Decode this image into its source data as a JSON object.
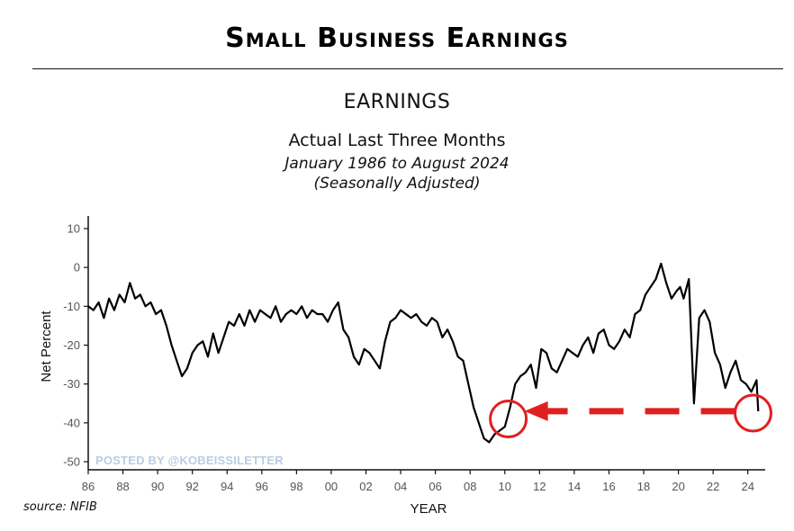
{
  "header": {
    "title": "Small Business Earnings"
  },
  "chart_data": {
    "type": "line",
    "title": "EARNINGS",
    "subtitle": "Actual Last Three Months",
    "date_range": "January 1986 to August 2024",
    "note": "(Seasonally Adjusted)",
    "xlabel": "YEAR",
    "ylabel": "Net Percent",
    "xlim": [
      1986,
      2025
    ],
    "ylim": [
      -50,
      10
    ],
    "xticks": [
      "86",
      "88",
      "90",
      "92",
      "94",
      "96",
      "98",
      "00",
      "02",
      "04",
      "06",
      "08",
      "10",
      "12",
      "14",
      "16",
      "18",
      "20",
      "22",
      "24"
    ],
    "yticks": [
      "10",
      "0",
      "-10",
      "-20",
      "-30",
      "-40",
      "-50"
    ],
    "grid": false,
    "series": [
      {
        "color": "#000000",
        "x": [
          1986.0,
          1986.3,
          1986.6,
          1986.9,
          1987.2,
          1987.5,
          1987.8,
          1988.1,
          1988.4,
          1988.7,
          1989.0,
          1989.3,
          1989.6,
          1989.9,
          1990.2,
          1990.5,
          1990.8,
          1991.1,
          1991.4,
          1991.7,
          1992.0,
          1992.3,
          1992.6,
          1992.9,
          1993.2,
          1993.5,
          1993.8,
          1994.1,
          1994.4,
          1994.7,
          1995.0,
          1995.3,
          1995.6,
          1995.9,
          1996.2,
          1996.5,
          1996.8,
          1997.1,
          1997.4,
          1997.7,
          1998.0,
          1998.3,
          1998.6,
          1998.9,
          1999.2,
          1999.5,
          1999.8,
          2000.1,
          2000.4,
          2000.7,
          2001.0,
          2001.3,
          2001.6,
          2001.9,
          2002.2,
          2002.5,
          2002.8,
          2003.1,
          2003.4,
          2003.7,
          2004.0,
          2004.3,
          2004.6,
          2004.9,
          2005.2,
          2005.5,
          2005.8,
          2006.1,
          2006.4,
          2006.7,
          2007.0,
          2007.3,
          2007.6,
          2007.9,
          2008.2,
          2008.5,
          2008.8,
          2009.1,
          2009.4,
          2009.7,
          2010.0,
          2010.3,
          2010.6,
          2010.9,
          2011.2,
          2011.5,
          2011.8,
          2012.1,
          2012.4,
          2012.7,
          2013.0,
          2013.3,
          2013.6,
          2013.9,
          2014.2,
          2014.5,
          2014.8,
          2015.1,
          2015.4,
          2015.7,
          2016.0,
          2016.3,
          2016.6,
          2016.9,
          2017.2,
          2017.5,
          2017.8,
          2018.1,
          2018.4,
          2018.7,
          2019.0,
          2019.3,
          2019.6,
          2019.9,
          2020.1,
          2020.3,
          2020.6,
          2020.9,
          2021.2,
          2021.5,
          2021.8,
          2022.1,
          2022.4,
          2022.7,
          2023.0,
          2023.3,
          2023.6,
          2023.9,
          2024.2,
          2024.5,
          2024.6
        ],
        "values": [
          -10,
          -11,
          -9,
          -13,
          -8,
          -11,
          -7,
          -9,
          -4,
          -8,
          -7,
          -10,
          -9,
          -12,
          -11,
          -15,
          -20,
          -24,
          -28,
          -26,
          -22,
          -20,
          -19,
          -23,
          -17,
          -22,
          -18,
          -14,
          -15,
          -12,
          -15,
          -11,
          -14,
          -11,
          -12,
          -13,
          -10,
          -14,
          -12,
          -11,
          -12,
          -10,
          -13,
          -11,
          -12,
          -12,
          -14,
          -11,
          -9,
          -16,
          -18,
          -23,
          -25,
          -21,
          -22,
          -24,
          -26,
          -19,
          -14,
          -13,
          -11,
          -12,
          -13,
          -12,
          -14,
          -15,
          -13,
          -14,
          -18,
          -16,
          -19,
          -23,
          -24,
          -30,
          -36,
          -40,
          -44,
          -45,
          -43,
          -42,
          -41,
          -36,
          -30,
          -28,
          -27,
          -25,
          -31,
          -21,
          -22,
          -26,
          -27,
          -24,
          -21,
          -22,
          -23,
          -20,
          -18,
          -22,
          -17,
          -16,
          -20,
          -21,
          -19,
          -16,
          -18,
          -12,
          -11,
          -7,
          -5,
          -3,
          1,
          -4,
          -8,
          -6,
          -5,
          -8,
          -3,
          -35,
          -13,
          -11,
          -14,
          -22,
          -25,
          -31,
          -27,
          -24,
          -29,
          -30,
          -32,
          -29,
          -37
        ]
      }
    ],
    "annotation": {
      "type": "arrow",
      "from_x": 2024.2,
      "to_x": 2010.2,
      "y": -37,
      "color": "#e02020"
    },
    "circles": [
      {
        "x": 2010.2,
        "y": -39
      },
      {
        "x": 2024.3,
        "y": -37.5
      }
    ]
  },
  "source": "source: NFIB",
  "watermark": "POSTED BY @KOBEISSILETTER"
}
